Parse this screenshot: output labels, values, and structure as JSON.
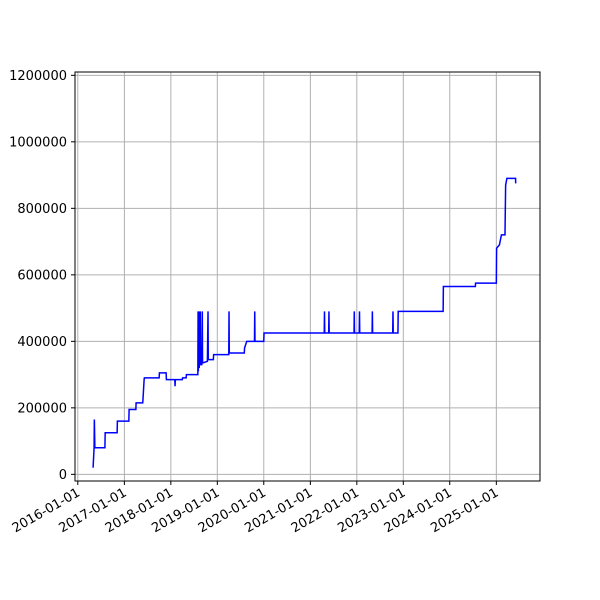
{
  "chart_data": {
    "type": "line",
    "title": "",
    "xlabel": "",
    "ylabel": "",
    "grid": true,
    "x_tick_labels": [
      "2016-01-01",
      "2017-01-01",
      "2018-01-01",
      "2019-01-01",
      "2020-01-01",
      "2021-01-01",
      "2022-01-01",
      "2023-01-01",
      "2024-01-01",
      "2025-01-01"
    ],
    "y_tick_labels": [
      "0",
      "200000",
      "400000",
      "600000",
      "800000",
      "1000000",
      "1200000"
    ],
    "y_ticks": [
      0,
      200000,
      400000,
      600000,
      800000,
      1000000,
      1200000
    ],
    "xlim": [
      "2015-12-10",
      "2025-12-10"
    ],
    "ylim": [
      -20000,
      1210000
    ],
    "series": [
      {
        "color": "#0000ff",
        "points": [
          [
            "2016-04-30",
            20000
          ],
          [
            "2016-05-08",
            80000
          ],
          [
            "2016-05-10",
            165000
          ],
          [
            "2016-05-14",
            80000
          ],
          [
            "2016-08-01",
            80000
          ],
          [
            "2016-08-03",
            125000
          ],
          [
            "2016-11-05",
            125000
          ],
          [
            "2016-11-07",
            160000
          ],
          [
            "2017-02-05",
            160000
          ],
          [
            "2017-02-07",
            195000
          ],
          [
            "2017-04-01",
            195000
          ],
          [
            "2017-04-03",
            215000
          ],
          [
            "2017-05-25",
            215000
          ],
          [
            "2017-05-27",
            225000
          ],
          [
            "2017-06-05",
            285000
          ],
          [
            "2017-06-07",
            290000
          ],
          [
            "2017-10-01",
            290000
          ],
          [
            "2017-10-03",
            305000
          ],
          [
            "2017-11-25",
            305000
          ],
          [
            "2017-11-27",
            285000
          ],
          [
            "2018-02-01",
            285000
          ],
          [
            "2018-02-03",
            265000
          ],
          [
            "2018-02-05",
            285000
          ],
          [
            "2018-04-01",
            285000
          ],
          [
            "2018-04-03",
            290000
          ],
          [
            "2018-05-01",
            290000
          ],
          [
            "2018-05-03",
            300000
          ],
          [
            "2018-08-01",
            300000
          ],
          [
            "2018-08-03",
            490000
          ],
          [
            "2018-08-05",
            310000
          ],
          [
            "2018-08-10",
            490000
          ],
          [
            "2018-08-12",
            320000
          ],
          [
            "2018-08-20",
            490000
          ],
          [
            "2018-08-22",
            330000
          ],
          [
            "2018-09-01",
            330000
          ],
          [
            "2018-09-05",
            490000
          ],
          [
            "2018-09-07",
            335000
          ],
          [
            "2018-10-15",
            340000
          ],
          [
            "2018-10-20",
            490000
          ],
          [
            "2018-10-22",
            345000
          ],
          [
            "2018-12-01",
            345000
          ],
          [
            "2018-12-03",
            360000
          ],
          [
            "2019-04-01",
            360000
          ],
          [
            "2019-04-03",
            490000
          ],
          [
            "2019-04-05",
            365000
          ],
          [
            "2019-08-01",
            365000
          ],
          [
            "2019-08-03",
            380000
          ],
          [
            "2019-08-20",
            400000
          ],
          [
            "2019-10-20",
            400000
          ],
          [
            "2019-10-22",
            490000
          ],
          [
            "2019-10-24",
            400000
          ],
          [
            "2020-01-01",
            400000
          ],
          [
            "2020-01-03",
            425000
          ],
          [
            "2021-04-20",
            425000
          ],
          [
            "2021-04-22",
            490000
          ],
          [
            "2021-04-24",
            425000
          ],
          [
            "2021-05-25",
            425000
          ],
          [
            "2021-05-27",
            490000
          ],
          [
            "2021-05-29",
            425000
          ],
          [
            "2021-12-10",
            425000
          ],
          [
            "2021-12-12",
            490000
          ],
          [
            "2021-12-14",
            425000
          ],
          [
            "2022-01-20",
            425000
          ],
          [
            "2022-01-22",
            490000
          ],
          [
            "2022-01-24",
            425000
          ],
          [
            "2022-05-01",
            425000
          ],
          [
            "2022-05-03",
            490000
          ],
          [
            "2022-05-05",
            425000
          ],
          [
            "2022-10-10",
            425000
          ],
          [
            "2022-10-12",
            490000
          ],
          [
            "2022-10-14",
            425000
          ],
          [
            "2022-11-20",
            425000
          ],
          [
            "2022-11-22",
            490000
          ],
          [
            "2023-11-10",
            490000
          ],
          [
            "2023-11-12",
            565000
          ],
          [
            "2024-07-20",
            565000
          ],
          [
            "2024-07-22",
            575000
          ],
          [
            "2025-01-01",
            575000
          ],
          [
            "2025-01-03",
            680000
          ],
          [
            "2025-01-25",
            690000
          ],
          [
            "2025-02-10",
            720000
          ],
          [
            "2025-03-10",
            720000
          ],
          [
            "2025-03-15",
            870000
          ],
          [
            "2025-03-20",
            880000
          ],
          [
            "2025-03-25",
            890000
          ],
          [
            "2025-06-01",
            890000
          ],
          [
            "2025-06-02",
            875000
          ]
        ]
      }
    ]
  }
}
